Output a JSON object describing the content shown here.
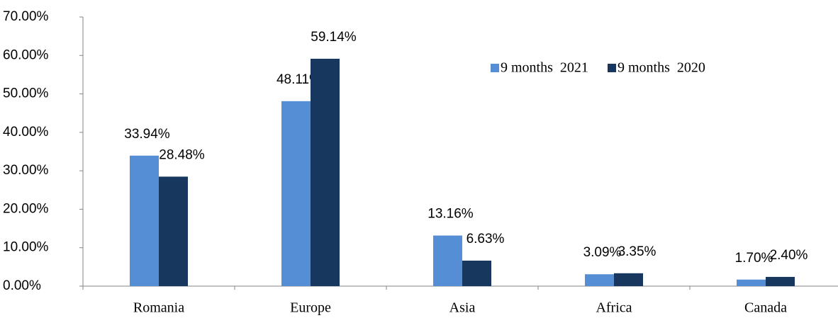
{
  "chart_data": {
    "type": "bar",
    "categories": [
      "Romania",
      "Europe",
      "Asia",
      "Africa",
      "Canada"
    ],
    "series": [
      {
        "name": "9 months  2021",
        "color": "#558ed5",
        "values": [
          33.94,
          48.11,
          13.16,
          3.09,
          1.7
        ],
        "value_labels": [
          "33.94%",
          "48.11%",
          "13.16%",
          "3.09%",
          "1.70%"
        ]
      },
      {
        "name": "9 months  2020",
        "color": "#17375e",
        "values": [
          28.48,
          59.14,
          6.63,
          3.35,
          2.4
        ],
        "value_labels": [
          "28.48%",
          "59.14%",
          "6.63%",
          "3.35%",
          "2.40%"
        ]
      }
    ],
    "ylim": [
      0,
      70
    ],
    "yticks": [
      {
        "value": 0,
        "label": "0.00%"
      },
      {
        "value": 10,
        "label": "10.00%"
      },
      {
        "value": 20,
        "label": "20.00%"
      },
      {
        "value": 30,
        "label": "30.00%"
      },
      {
        "value": 40,
        "label": "40.00%"
      },
      {
        "value": 50,
        "label": "50.00%"
      },
      {
        "value": 60,
        "label": "60.00%"
      },
      {
        "value": 70,
        "label": "70.00%"
      }
    ],
    "legend": "upper right"
  }
}
